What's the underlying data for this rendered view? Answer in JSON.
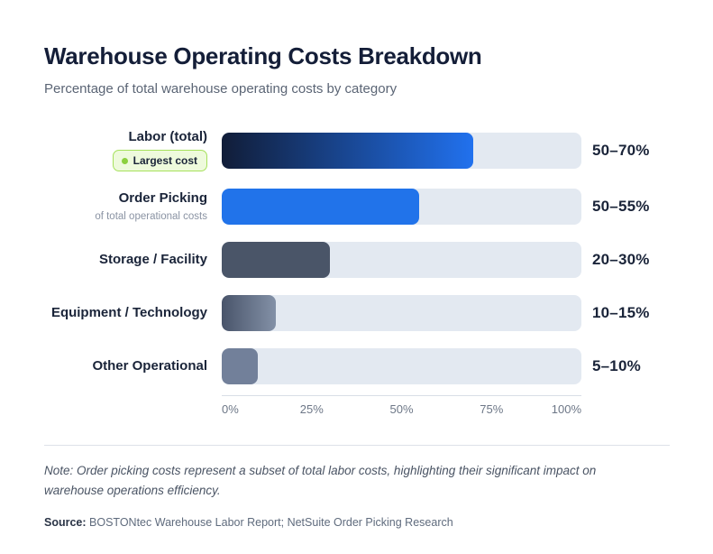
{
  "header": {
    "title": "Warehouse Operating Costs Breakdown",
    "subtitle": "Percentage of total warehouse operating costs by category"
  },
  "chart_data": {
    "type": "bar",
    "orientation": "horizontal",
    "title": "Warehouse Operating Costs Breakdown",
    "subtitle": "Percentage of total warehouse operating costs by category",
    "xlabel": "",
    "ylabel": "",
    "xlim": [
      0,
      100
    ],
    "x_ticks": [
      "0%",
      "25%",
      "50%",
      "75%",
      "100%"
    ],
    "grid": false,
    "legend": false,
    "bars": [
      {
        "category": "Labor (total)",
        "badge": "Largest cost",
        "range": [
          50,
          70
        ],
        "range_label": "50–70%",
        "bar_value": 70,
        "fill": {
          "type": "gradient",
          "from": "#111d38",
          "to": "#2171ee"
        }
      },
      {
        "category": "Order Picking",
        "sublabel": "of total operational costs",
        "range": [
          50,
          55
        ],
        "range_label": "50–55%",
        "bar_value": 55,
        "fill": {
          "type": "solid",
          "color": "#2173ea"
        }
      },
      {
        "category": "Storage / Facility",
        "range": [
          20,
          30
        ],
        "range_label": "20–30%",
        "bar_value": 30,
        "fill": {
          "type": "solid",
          "color": "#4a5568"
        }
      },
      {
        "category": "Equipment / Technology",
        "range": [
          10,
          15
        ],
        "range_label": "10–15%",
        "bar_value": 15,
        "fill": {
          "type": "gradient",
          "from": "#49546a",
          "to": "#8391a7"
        }
      },
      {
        "category": "Other Operational",
        "range": [
          5,
          10
        ],
        "range_label": "5–10%",
        "bar_value": 10,
        "fill": {
          "type": "solid",
          "color": "#72809a"
        }
      }
    ]
  },
  "colors": {
    "track": "#e3e9f1",
    "badge_bg": "#eefadc",
    "badge_border": "#a6e15c",
    "badge_dot": "#8cd03e",
    "accent_blue": "#2171ee",
    "text_primary": "#1a2439",
    "text_muted": "#5b6575"
  },
  "footer": {
    "note": "Note: Order picking costs represent a subset of total labor costs, highlighting their significant impact on warehouse operations efficiency.",
    "source_label": "Source:",
    "source_text": "BOSTONtec Warehouse Labor Report; NetSuite Order Picking Research"
  }
}
